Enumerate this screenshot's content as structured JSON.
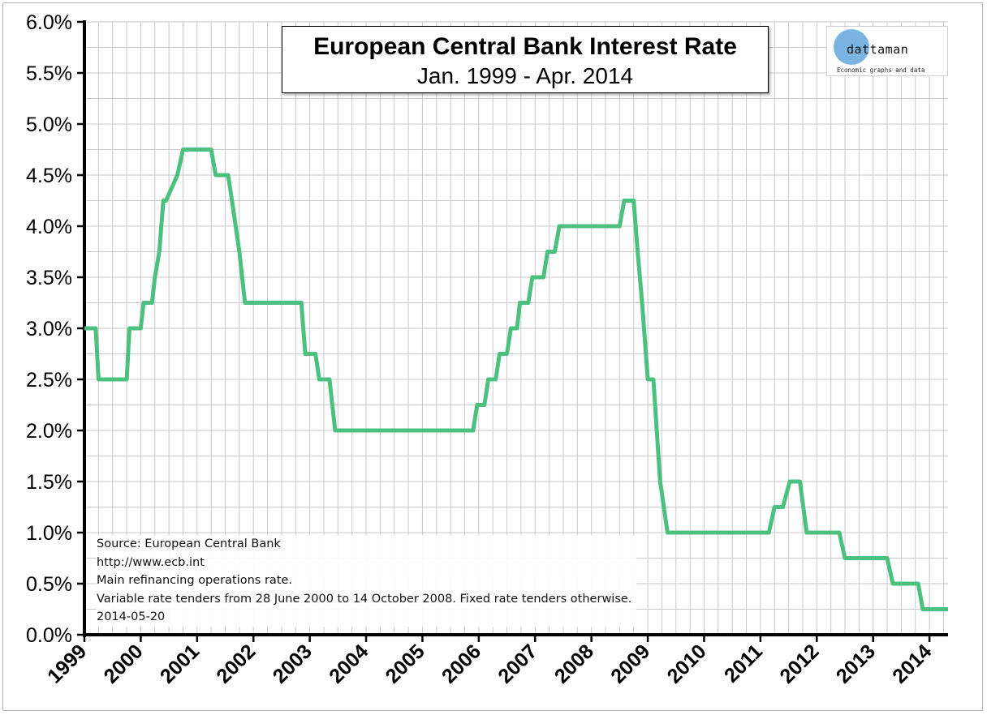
{
  "chart_data": {
    "type": "line",
    "title": "European Central Bank Interest Rate",
    "subtitle": "Jan. 1999 - Apr. 2014",
    "xlabel": "",
    "ylabel": "",
    "xlim": [
      1999.0,
      2014.33
    ],
    "ylim": [
      0,
      6
    ],
    "grid": true,
    "y_ticks": [
      "0.0%",
      "0.5%",
      "1.0%",
      "1.5%",
      "2.0%",
      "2.5%",
      "3.0%",
      "3.5%",
      "4.0%",
      "4.5%",
      "5.0%",
      "5.5%",
      "6.0%"
    ],
    "y_tick_values": [
      0,
      0.5,
      1.0,
      1.5,
      2.0,
      2.5,
      3.0,
      3.5,
      4.0,
      4.5,
      5.0,
      5.5,
      6.0
    ],
    "x_ticks": [
      "1999",
      "2000",
      "2001",
      "2002",
      "2003",
      "2004",
      "2005",
      "2006",
      "2007",
      "2008",
      "2009",
      "2010",
      "2011",
      "2012",
      "2013",
      "2014"
    ],
    "x_tick_values": [
      1999,
      2000,
      2001,
      2002,
      2003,
      2004,
      2005,
      2006,
      2007,
      2008,
      2009,
      2010,
      2011,
      2012,
      2013,
      2014
    ],
    "series": [
      {
        "color": "#4cc07f",
        "x": [
          1999.0,
          1999.2,
          1999.25,
          1999.75,
          1999.8,
          2000.0,
          2000.05,
          2000.2,
          2000.25,
          2000.33,
          2000.4,
          2000.45,
          2000.65,
          2000.75,
          2001.25,
          2001.33,
          2001.55,
          2001.62,
          2001.75,
          2001.85,
          2002.85,
          2002.92,
          2003.1,
          2003.17,
          2003.35,
          2003.45,
          2005.9,
          2005.97,
          2006.1,
          2006.17,
          2006.3,
          2006.37,
          2006.5,
          2006.57,
          2006.68,
          2006.73,
          2006.88,
          2006.95,
          2007.15,
          2007.22,
          2007.35,
          2007.43,
          2008.5,
          2008.58,
          2008.75,
          2008.82,
          2008.9,
          2009.0,
          2009.1,
          2009.22,
          2009.35,
          2011.15,
          2011.25,
          2011.4,
          2011.52,
          2011.7,
          2011.82,
          2012.4,
          2012.5,
          2013.25,
          2013.35,
          2013.8,
          2013.88,
          2014.33
        ],
        "values": [
          3.0,
          3.0,
          2.5,
          2.5,
          3.0,
          3.0,
          3.25,
          3.25,
          3.5,
          3.75,
          4.25,
          4.25,
          4.5,
          4.75,
          4.75,
          4.5,
          4.5,
          4.25,
          3.75,
          3.25,
          3.25,
          2.75,
          2.75,
          2.5,
          2.5,
          2.0,
          2.0,
          2.25,
          2.25,
          2.5,
          2.5,
          2.75,
          2.75,
          3.0,
          3.0,
          3.25,
          3.25,
          3.5,
          3.5,
          3.75,
          3.75,
          4.0,
          4.0,
          4.25,
          4.25,
          3.75,
          3.25,
          2.5,
          2.5,
          1.5,
          1.0,
          1.0,
          1.25,
          1.25,
          1.5,
          1.5,
          1.0,
          1.0,
          0.75,
          0.75,
          0.5,
          0.5,
          0.25,
          0.25
        ]
      }
    ]
  },
  "notes": {
    "source": "Source: European Central Bank",
    "url": "http://www.ecb.int",
    "description": "Main refinancing operations rate.",
    "tenders": "Variable rate tenders from 28 June 2000 to 14 October 2008. Fixed rate tenders otherwise.",
    "date": "2014-05-20"
  },
  "logo": {
    "name": "dattaman",
    "tagline": "Economic graphs and data",
    "circle_color": "#7bb4e0"
  }
}
